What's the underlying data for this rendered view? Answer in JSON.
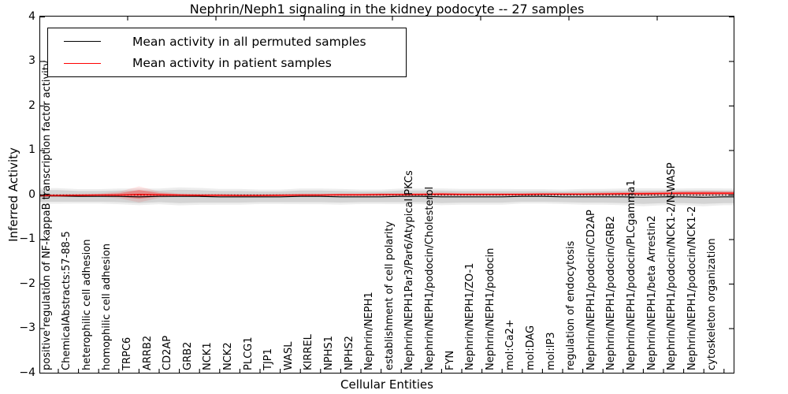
{
  "chart_data": {
    "type": "line",
    "title": "Nephrin/Neph1 signaling in the kidney podocyte -- 27 samples",
    "xlabel": "Cellular Entities",
    "ylabel": "Inferred Activity",
    "ylim": [
      -4,
      4
    ],
    "y_ticks": [
      4,
      3,
      2,
      1,
      0,
      -1,
      -2,
      -3,
      -4
    ],
    "grid": false,
    "legend_position": "upper left",
    "zero_line": {
      "style": "dotted",
      "color": "#000000",
      "y": 0
    },
    "categories": [
      "positive regulation of NF-kappaB transcription factor activity",
      "ChemicalAbstracts:57-88-5",
      "heterophilic cell adhesion",
      "homophilic cell adhesion",
      "TRPC6",
      "ARRB2",
      "CD2AP",
      "GRB2",
      "NCK1",
      "NCK2",
      "PLCG1",
      "TJP1",
      "WASL",
      "KIRREL",
      "NPHS1",
      "NPHS2",
      "Nephrin/NEPH1",
      "establishment of cell polarity",
      "Nephrin/NEPH1Par3/Par6/Atypical PKCs",
      "Nephrin/NEPH1/podocin/Cholesterol",
      "FYN",
      "Nephrin/NEPH1/ZO-1",
      "Nephrin/NEPH1/podocin",
      "mol:Ca2+",
      "mol:DAG",
      "mol:IP3",
      "regulation of endocytosis",
      "Nephrin/NEPH1/podocin/CD2AP",
      "Nephrin/NEPH1/podocin/GRB2",
      "Nephrin/NEPH1/podocin/PLCgamma1",
      "Nephrin/NEPH1/beta Arrestin2",
      "Nephrin/NEPH1/podocin/NCK1-2/N-WASP",
      "Nephrin/NEPH1/podocin/NCK1-2",
      "cytoskeleton organization"
    ],
    "series": [
      {
        "name": "Mean activity in all permuted samples",
        "color": "#000000",
        "values": [
          -0.02,
          -0.03,
          -0.03,
          -0.03,
          -0.04,
          -0.03,
          -0.03,
          -0.03,
          -0.04,
          -0.04,
          -0.04,
          -0.04,
          -0.03,
          -0.03,
          -0.04,
          -0.04,
          -0.04,
          -0.03,
          -0.03,
          -0.04,
          -0.04,
          -0.04,
          -0.04,
          -0.03,
          -0.03,
          -0.04,
          -0.04,
          -0.04,
          -0.04,
          -0.05,
          -0.04,
          -0.04,
          -0.05,
          -0.04
        ],
        "band_halfwidth": [
          0.13,
          0.12,
          0.12,
          0.13,
          0.14,
          0.13,
          0.15,
          0.14,
          0.13,
          0.13,
          0.12,
          0.12,
          0.13,
          0.13,
          0.13,
          0.12,
          0.12,
          0.13,
          0.13,
          0.14,
          0.13,
          0.13,
          0.13,
          0.12,
          0.12,
          0.12,
          0.13,
          0.13,
          0.14,
          0.15,
          0.14,
          0.14,
          0.15,
          0.14
        ]
      },
      {
        "name": "Mean activity in patient samples",
        "color": "#ff0000",
        "values": [
          -0.01,
          -0.005,
          0.0,
          0.0,
          0.015,
          0.005,
          0.0,
          -0.005,
          -0.005,
          -0.01,
          -0.01,
          -0.005,
          0.0,
          0.0,
          0.005,
          0.005,
          0.01,
          0.01,
          0.015,
          0.02,
          0.015,
          0.015,
          0.015,
          0.015,
          0.02,
          0.02,
          0.02,
          0.025,
          0.03,
          0.03,
          0.035,
          0.04,
          0.04,
          0.04
        ],
        "band_halfwidth": [
          0.02,
          0.02,
          0.02,
          0.04,
          0.1,
          0.04,
          0.02,
          0.02,
          0.02,
          0.02,
          0.02,
          0.02,
          0.02,
          0.02,
          0.02,
          0.02,
          0.02,
          0.02,
          0.02,
          0.025,
          0.02,
          0.02,
          0.02,
          0.02,
          0.02,
          0.02,
          0.02,
          0.025,
          0.025,
          0.03,
          0.03,
          0.03,
          0.035,
          0.03
        ]
      }
    ],
    "band_colors": {
      "permuted_inner": "rgba(0,0,0,0.10)",
      "permuted_outer": "rgba(0,0,0,0.07)",
      "patient_inner": "rgba(255,0,0,0.28)",
      "patient_outer": "rgba(255,0,0,0.10)"
    }
  },
  "legend": {
    "entries": [
      {
        "label": "Mean activity in all permuted samples",
        "color": "#000000"
      },
      {
        "label": "Mean activity in patient samples",
        "color": "#ff0000"
      }
    ]
  }
}
